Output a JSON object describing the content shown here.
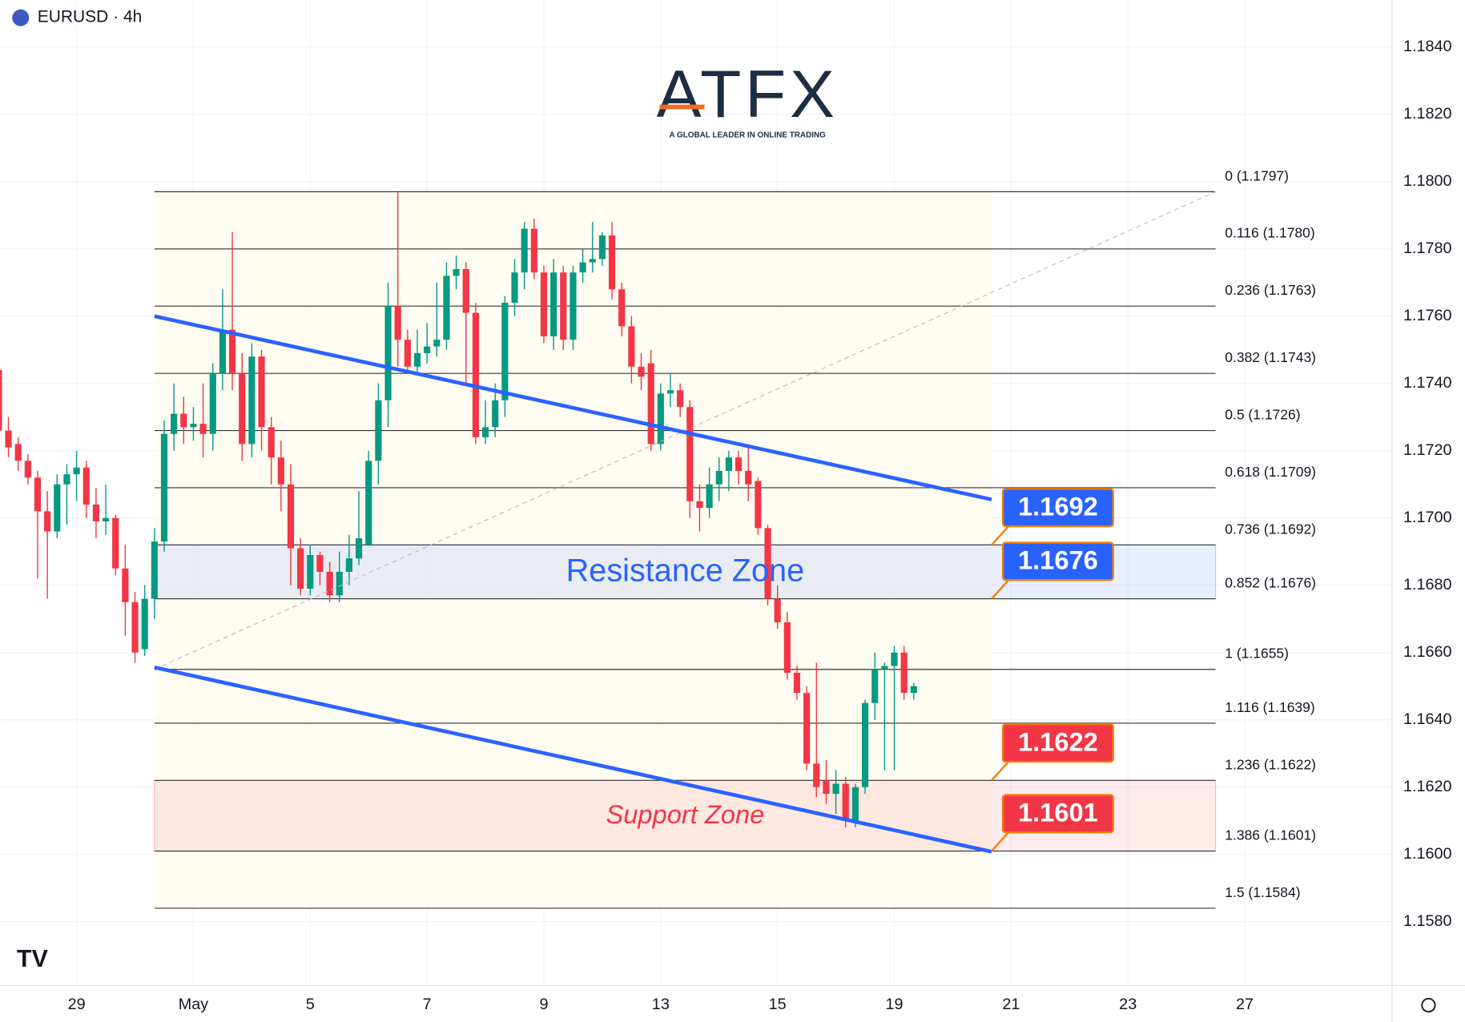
{
  "header": {
    "symbol": "EURUSD · 4h"
  },
  "logo": {
    "name": "ATFX",
    "tagline": "A GLOBAL LEADER IN ONLINE TRADING"
  },
  "chart_data": {
    "type": "candlestick",
    "colors": {
      "up": "#089981",
      "down": "#f23645"
    },
    "ohlc": [
      [
        1.1744,
        1.1755,
        1.1723,
        1.1726
      ],
      [
        1.1726,
        1.173,
        1.1718,
        1.1721
      ],
      [
        1.1722,
        1.1724,
        1.1714,
        1.1717
      ],
      [
        1.1717,
        1.1719,
        1.171,
        1.1712
      ],
      [
        1.1712,
        1.1714,
        1.1682,
        1.1702
      ],
      [
        1.1702,
        1.1708,
        1.1676,
        1.1696
      ],
      [
        1.1696,
        1.1713,
        1.1694,
        1.171
      ],
      [
        1.171,
        1.1716,
        1.1698,
        1.1713
      ],
      [
        1.1713,
        1.172,
        1.1705,
        1.1715
      ],
      [
        1.1715,
        1.1717,
        1.17,
        1.1704
      ],
      [
        1.1704,
        1.1709,
        1.1694,
        1.1699
      ],
      [
        1.1699,
        1.171,
        1.1695,
        1.17
      ],
      [
        1.17,
        1.1701,
        1.1683,
        1.1685
      ],
      [
        1.1685,
        1.1692,
        1.1665,
        1.1675
      ],
      [
        1.1675,
        1.1678,
        1.1657,
        1.166
      ],
      [
        1.1661,
        1.168,
        1.1659,
        1.1676
      ],
      [
        1.1676,
        1.1697,
        1.167,
        1.1693
      ],
      [
        1.1693,
        1.1729,
        1.169,
        1.1725
      ],
      [
        1.1725,
        1.174,
        1.172,
        1.1731
      ],
      [
        1.1731,
        1.1736,
        1.1722,
        1.1727
      ],
      [
        1.1727,
        1.1733,
        1.1723,
        1.1728
      ],
      [
        1.1728,
        1.174,
        1.1718,
        1.1725
      ],
      [
        1.1725,
        1.1746,
        1.172,
        1.1743
      ],
      [
        1.1743,
        1.1768,
        1.1738,
        1.1756
      ],
      [
        1.1756,
        1.1785,
        1.1738,
        1.1743
      ],
      [
        1.1743,
        1.1749,
        1.1717,
        1.1722
      ],
      [
        1.1722,
        1.1752,
        1.1718,
        1.1748
      ],
      [
        1.1748,
        1.175,
        1.172,
        1.1727
      ],
      [
        1.1727,
        1.173,
        1.171,
        1.1718
      ],
      [
        1.1718,
        1.1723,
        1.1702,
        1.171
      ],
      [
        1.171,
        1.1716,
        1.168,
        1.1691
      ],
      [
        1.1691,
        1.1694,
        1.1677,
        1.1679
      ],
      [
        1.1679,
        1.1692,
        1.1677,
        1.1689
      ],
      [
        1.1689,
        1.169,
        1.168,
        1.1684
      ],
      [
        1.1684,
        1.1687,
        1.1675,
        1.1677
      ],
      [
        1.1677,
        1.169,
        1.1675,
        1.1684
      ],
      [
        1.1684,
        1.1695,
        1.168,
        1.1688
      ],
      [
        1.1688,
        1.1708,
        1.1686,
        1.1694
      ],
      [
        1.1692,
        1.172,
        1.1692,
        1.1717
      ],
      [
        1.1717,
        1.174,
        1.171,
        1.1735
      ],
      [
        1.1735,
        1.177,
        1.1727,
        1.1763
      ],
      [
        1.1763,
        1.1797,
        1.1745,
        1.1753
      ],
      [
        1.1753,
        1.1756,
        1.1743,
        1.1745
      ],
      [
        1.1745,
        1.1756,
        1.1743,
        1.1749
      ],
      [
        1.1749,
        1.1758,
        1.1746,
        1.1751
      ],
      [
        1.1751,
        1.177,
        1.1748,
        1.1753
      ],
      [
        1.1753,
        1.1776,
        1.175,
        1.1772
      ],
      [
        1.1772,
        1.1778,
        1.1768,
        1.1774
      ],
      [
        1.1774,
        1.1776,
        1.174,
        1.1761
      ],
      [
        1.1761,
        1.1764,
        1.1722,
        1.1724
      ],
      [
        1.1724,
        1.1735,
        1.1722,
        1.1727
      ],
      [
        1.1727,
        1.174,
        1.1724,
        1.1735
      ],
      [
        1.1735,
        1.1766,
        1.173,
        1.1764
      ],
      [
        1.1764,
        1.1777,
        1.176,
        1.1773
      ],
      [
        1.1773,
        1.1788,
        1.1768,
        1.1786
      ],
      [
        1.1786,
        1.1789,
        1.1771,
        1.1773
      ],
      [
        1.1773,
        1.1775,
        1.1752,
        1.1754
      ],
      [
        1.1754,
        1.1777,
        1.175,
        1.1773
      ],
      [
        1.1773,
        1.1775,
        1.175,
        1.1753
      ],
      [
        1.1753,
        1.1775,
        1.175,
        1.1773
      ],
      [
        1.1773,
        1.178,
        1.177,
        1.1776
      ],
      [
        1.1776,
        1.1788,
        1.1773,
        1.1777
      ],
      [
        1.1777,
        1.1785,
        1.1775,
        1.1784
      ],
      [
        1.1784,
        1.1788,
        1.1765,
        1.1768
      ],
      [
        1.1768,
        1.177,
        1.1754,
        1.1757
      ],
      [
        1.1757,
        1.176,
        1.174,
        1.1745
      ],
      [
        1.1745,
        1.1749,
        1.1738,
        1.1742
      ],
      [
        1.1746,
        1.175,
        1.172,
        1.1722
      ],
      [
        1.1722,
        1.174,
        1.172,
        1.1737
      ],
      [
        1.1737,
        1.1743,
        1.1733,
        1.1738
      ],
      [
        1.1738,
        1.174,
        1.173,
        1.1733
      ],
      [
        1.1733,
        1.1735,
        1.17,
        1.1705
      ],
      [
        1.1705,
        1.171,
        1.1696,
        1.1703
      ],
      [
        1.1703,
        1.1715,
        1.17,
        1.171
      ],
      [
        1.171,
        1.1718,
        1.1705,
        1.1714
      ],
      [
        1.1714,
        1.172,
        1.1708,
        1.1718
      ],
      [
        1.1718,
        1.172,
        1.171,
        1.1714
      ],
      [
        1.1714,
        1.1722,
        1.1705,
        1.171
      ],
      [
        1.1711,
        1.1712,
        1.1695,
        1.1697
      ],
      [
        1.1697,
        1.1698,
        1.1674,
        1.1676
      ],
      [
        1.1676,
        1.168,
        1.1667,
        1.1669
      ],
      [
        1.1669,
        1.1672,
        1.1652,
        1.1654
      ],
      [
        1.1654,
        1.1656,
        1.1646,
        1.1648
      ],
      [
        1.1648,
        1.165,
        1.1625,
        1.1627
      ],
      [
        1.1627,
        1.1657,
        1.1617,
        1.162
      ],
      [
        1.1622,
        1.1628,
        1.1615,
        1.1618
      ],
      [
        1.1618,
        1.1625,
        1.1612,
        1.1621
      ],
      [
        1.1621,
        1.1623,
        1.1608,
        1.161
      ],
      [
        1.161,
        1.1621,
        1.1608,
        1.162
      ],
      [
        1.162,
        1.1646,
        1.1618,
        1.1645
      ],
      [
        1.1645,
        1.166,
        1.164,
        1.1655
      ],
      [
        1.1655,
        1.1657,
        1.1625,
        1.1656
      ],
      [
        1.1656,
        1.1662,
        1.1625,
        1.166
      ],
      [
        1.166,
        1.1662,
        1.1646,
        1.1648
      ],
      [
        1.1648,
        1.1651,
        1.1646,
        1.165
      ]
    ],
    "xlim": [
      0.14,
      143.13
    ],
    "ylim": [
      1.1561,
      1.1854
    ],
    "xticks": [
      {
        "value": 8,
        "label": "29"
      },
      {
        "value": 20,
        "label": "May"
      },
      {
        "value": 32,
        "label": "5"
      },
      {
        "value": 44,
        "label": "7"
      },
      {
        "value": 56,
        "label": "9"
      },
      {
        "value": 68,
        "label": "13"
      },
      {
        "value": 80,
        "label": "15"
      },
      {
        "value": 92,
        "label": "19"
      },
      {
        "value": 104,
        "label": "21"
      },
      {
        "value": 116,
        "label": "23"
      },
      {
        "value": 128,
        "label": "27"
      }
    ],
    "yticks": [
      {
        "value": 1.184,
        "label": "1.1840"
      },
      {
        "value": 1.182,
        "label": "1.1820"
      },
      {
        "value": 1.18,
        "label": "1.1800"
      },
      {
        "value": 1.178,
        "label": "1.1780"
      },
      {
        "value": 1.176,
        "label": "1.1760"
      },
      {
        "value": 1.174,
        "label": "1.1740"
      },
      {
        "value": 1.172,
        "label": "1.1720"
      },
      {
        "value": 1.17,
        "label": "1.1700"
      },
      {
        "value": 1.168,
        "label": "1.1680"
      },
      {
        "value": 1.166,
        "label": "1.1660"
      },
      {
        "value": 1.164,
        "label": "1.1640"
      },
      {
        "value": 1.162,
        "label": "1.1620"
      },
      {
        "value": 1.16,
        "label": "1.1600"
      },
      {
        "value": 1.158,
        "label": "1.1580"
      }
    ],
    "grid": true,
    "fib_x": [
      16,
      125
    ],
    "fib_levels": [
      {
        "value": 1.1797,
        "label": "0 (1.1797)"
      },
      {
        "value": 1.178,
        "label": "0.116 (1.1780)"
      },
      {
        "value": 1.1763,
        "label": "0.236 (1.1763)"
      },
      {
        "value": 1.1743,
        "label": "0.382 (1.1743)"
      },
      {
        "value": 1.1726,
        "label": "0.5 (1.1726)"
      },
      {
        "value": 1.1709,
        "label": "0.618 (1.1709)"
      },
      {
        "value": 1.1692,
        "label": "0.736 (1.1692)"
      },
      {
        "value": 1.1676,
        "label": "0.852 (1.1676)"
      },
      {
        "value": 1.1655,
        "label": "1 (1.1655)"
      },
      {
        "value": 1.1639,
        "label": "1.116 (1.1639)"
      },
      {
        "value": 1.1622,
        "label": "1.236 (1.1622)"
      },
      {
        "value": 1.1601,
        "label": "1.386 (1.1601)"
      },
      {
        "value": 1.1584,
        "label": "1.5 (1.1584)"
      }
    ],
    "zones": [
      {
        "name": "Resistance Zone",
        "range": [
          1.1676,
          1.1692
        ],
        "color": "#2962ff"
      },
      {
        "name": "Support Zone",
        "range": [
          1.1601,
          1.1622
        ],
        "color": "#f23645"
      }
    ],
    "channel": [
      {
        "x": [
          16,
          102
        ],
        "y": [
          1.176,
          1.17055
        ],
        "color": "#2962ff"
      },
      {
        "x": [
          16,
          102
        ],
        "y": [
          1.16556,
          1.16008
        ],
        "color": "#2962ff"
      }
    ],
    "trend_line": {
      "x": [
        16,
        125
      ],
      "y": [
        1.1655,
        1.1797
      ]
    },
    "price_labels": [
      {
        "value": 1.1692,
        "color": "#2962ff"
      },
      {
        "value": 1.1676,
        "color": "#2962ff"
      },
      {
        "value": 1.1622,
        "color": "#f23645"
      },
      {
        "value": 1.1601,
        "color": "#f23645"
      }
    ],
    "label_x": 102
  }
}
